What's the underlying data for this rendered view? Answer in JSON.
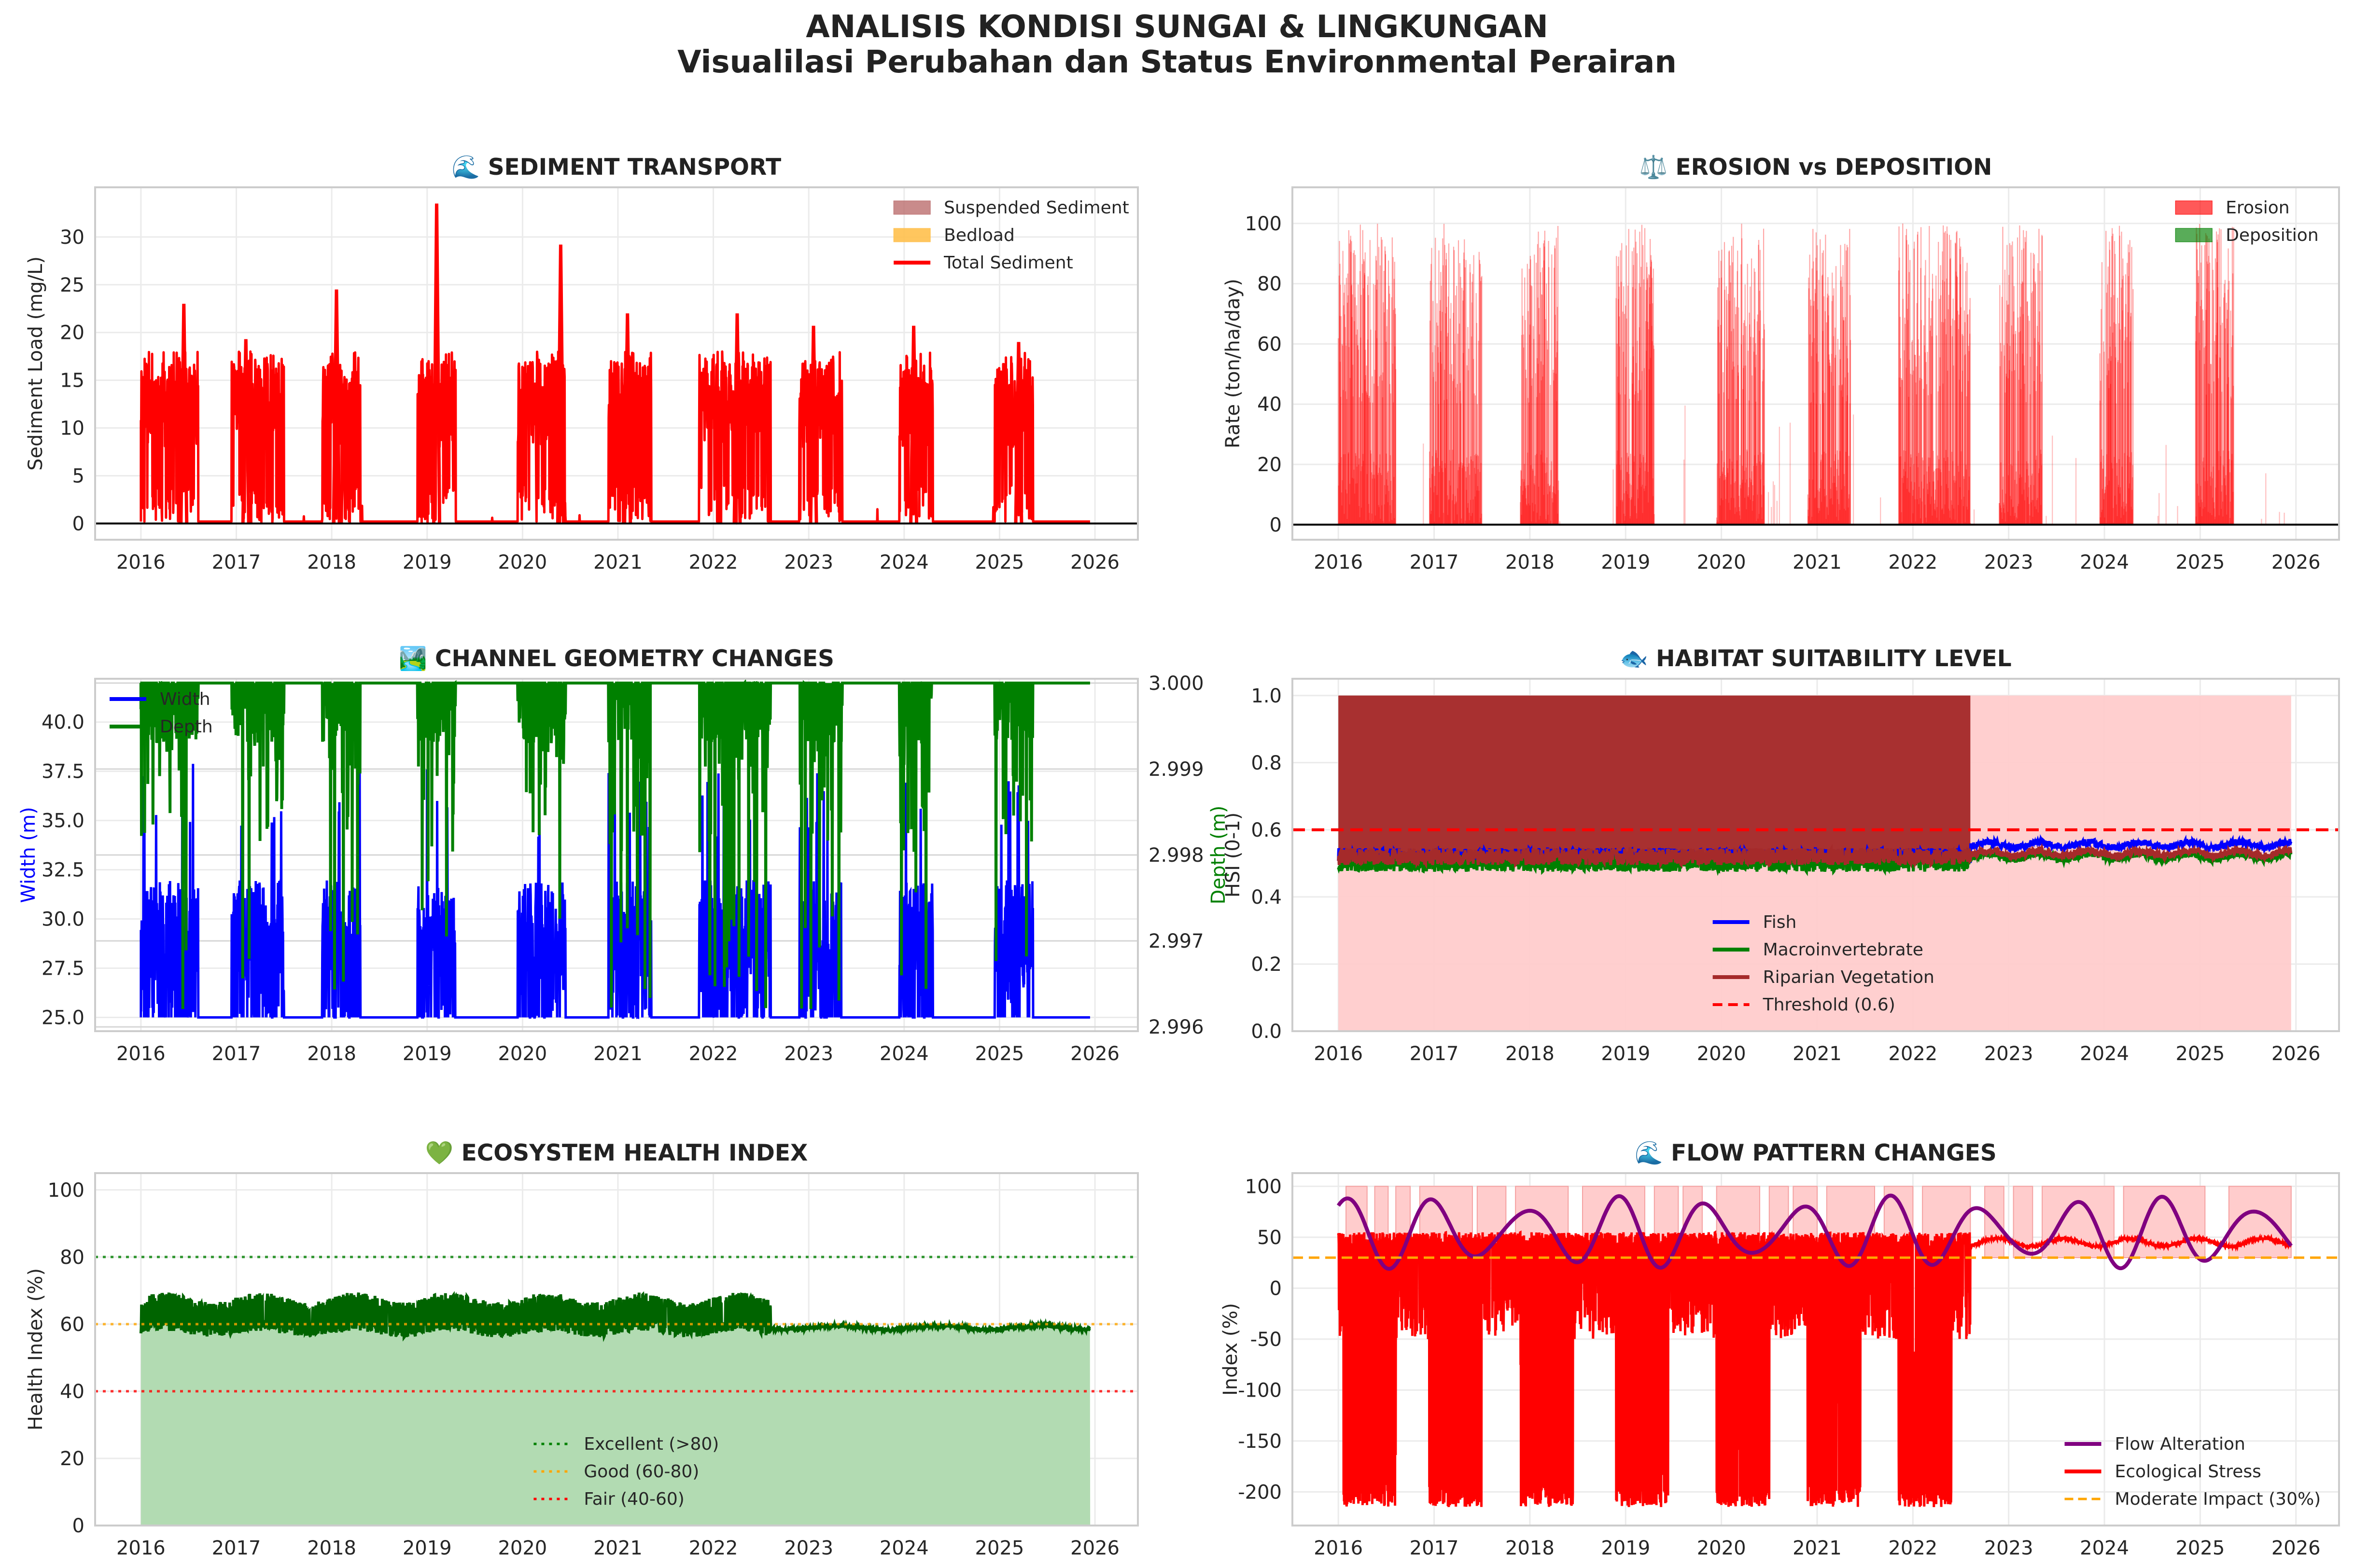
{
  "figure": {
    "title": "ANALISIS KONDISI SUNGAI & LINGKUNGAN",
    "subtitle": "Visualilasi Perubahan dan Status Environmental Perairan"
  },
  "colors": {
    "red": "#ff0000",
    "blue": "#0000ff",
    "green": "#008000",
    "darkgreen": "#006400",
    "brown": "#a52a2a",
    "purple": "#800080",
    "orange": "#ffa500",
    "suspended": "#bc6e6e",
    "bedload": "#ffc04d",
    "pink": "#ffcccc",
    "lightgreen": "#b2dbb2"
  },
  "chart_data": [
    {
      "id": "sediment",
      "type": "line",
      "title": "🌊 SEDIMENT TRANSPORT",
      "xlabel": "",
      "ylabel": "Sediment Load (mg/L)",
      "xlim": [
        2015.52,
        2026.45
      ],
      "ylim": [
        -1.7,
        35.2
      ],
      "xticks": [
        2016,
        2017,
        2018,
        2019,
        2020,
        2021,
        2022,
        2023,
        2024,
        2025,
        2026
      ],
      "yticks": [
        0,
        5,
        10,
        15,
        20,
        25,
        30
      ],
      "legend": [
        "Suspended Sediment",
        "Bedload",
        "Total Sediment"
      ],
      "legend_position": "upper right",
      "series": [
        {
          "name": "Total Sediment",
          "wet_seasons": [
            [
              2016.0,
              2016.6
            ],
            [
              2016.95,
              2017.5
            ],
            [
              2017.9,
              2018.3
            ],
            [
              2018.9,
              2019.3
            ],
            [
              2019.95,
              2020.45
            ],
            [
              2020.9,
              2021.35
            ],
            [
              2021.85,
              2022.6
            ],
            [
              2022.9,
              2023.35
            ],
            [
              2023.95,
              2024.3
            ],
            [
              2024.95,
              2025.35
            ]
          ],
          "peaks": [
            [
              2016.45,
              23
            ],
            [
              2017.1,
              19.3
            ],
            [
              2018.05,
              24.5
            ],
            [
              2019.1,
              33.5
            ],
            [
              2020.4,
              29.2
            ],
            [
              2021.1,
              22
            ],
            [
              2022.25,
              22
            ],
            [
              2023.05,
              20.7
            ],
            [
              2024.1,
              20.7
            ],
            [
              2025.2,
              19
            ]
          ],
          "baseline": 0.2
        }
      ]
    },
    {
      "id": "erosion",
      "type": "bar",
      "title": "⚖️ EROSION vs DEPOSITION",
      "xlabel": "",
      "ylabel": "Rate (ton/ha/day)",
      "xlim": [
        2015.52,
        2026.45
      ],
      "ylim": [
        -5,
        112
      ],
      "xticks": [
        2016,
        2017,
        2018,
        2019,
        2020,
        2021,
        2022,
        2023,
        2024,
        2025,
        2026
      ],
      "yticks": [
        0,
        20,
        40,
        60,
        80,
        100
      ],
      "legend": [
        "Erosion",
        "Deposition"
      ],
      "legend_position": "upper right",
      "series": [
        {
          "name": "Erosion",
          "wet_seasons": [
            [
              2016.0,
              2016.6
            ],
            [
              2016.95,
              2017.5
            ],
            [
              2017.9,
              2018.3
            ],
            [
              2018.9,
              2019.3
            ],
            [
              2019.95,
              2020.45
            ],
            [
              2020.9,
              2021.35
            ],
            [
              2021.85,
              2022.6
            ],
            [
              2022.9,
              2023.35
            ],
            [
              2023.95,
              2024.3
            ],
            [
              2024.95,
              2025.35
            ]
          ],
          "max": 100
        }
      ]
    },
    {
      "id": "channel",
      "type": "line",
      "title": "🏞️ CHANNEL GEOMETRY CHANGES",
      "xlabel": "",
      "ylabel": "Width (m)",
      "ylabel_right": "Depth (m)",
      "xlim": [
        2015.52,
        2026.45
      ],
      "ylim": [
        24.3,
        42.2
      ],
      "ylim_right": [
        2.99595,
        3.00005
      ],
      "xticks": [
        2016,
        2017,
        2018,
        2019,
        2020,
        2021,
        2022,
        2023,
        2024,
        2025,
        2026
      ],
      "yticks": [
        25.0,
        27.5,
        30.0,
        32.5,
        35.0,
        37.5,
        40.0
      ],
      "ytick_labels": [
        "25.0",
        "27.5",
        "30.0",
        "32.5",
        "35.0",
        "37.5",
        "40.0"
      ],
      "yticks_right": [
        2.996,
        2.997,
        2.998,
        2.999,
        3.0
      ],
      "ytick_labels_right": [
        "2.996",
        "2.997",
        "2.998",
        "2.999",
        "3.000"
      ],
      "legend": [
        "Width",
        "Depth"
      ],
      "legend_position": "upper left",
      "series": [
        {
          "name": "Width",
          "baseline": 25,
          "peak": 38
        },
        {
          "name": "Depth",
          "baseline": 3.0,
          "min": 2.9962
        }
      ]
    },
    {
      "id": "habitat",
      "type": "line",
      "title": "🐟 HABITAT SUITABILITY LEVEL",
      "xlabel": "",
      "ylabel": "HSI (0-1)",
      "xlim": [
        2015.52,
        2026.45
      ],
      "ylim": [
        0,
        1.05
      ],
      "xticks": [
        2016,
        2017,
        2018,
        2019,
        2020,
        2021,
        2022,
        2023,
        2024,
        2025,
        2026
      ],
      "yticks": [
        0.0,
        0.2,
        0.4,
        0.6,
        0.8,
        1.0
      ],
      "ytick_labels": [
        "0.0",
        "0.2",
        "0.4",
        "0.6",
        "0.8",
        "1.0"
      ],
      "legend": [
        "Fish",
        "Macroinvertebrate",
        "Riparian Vegetation",
        "Threshold (0.6)"
      ],
      "legend_position": "lower center",
      "threshold": 0.6,
      "series": [
        {
          "name": "Fish",
          "level_early": 0.52,
          "level_late": 0.555
        },
        {
          "name": "Macroinvertebrate",
          "level_early": 0.5,
          "level_late": 0.52
        },
        {
          "name": "Riparian Vegetation",
          "level_early": 0.52,
          "level_late": 0.53
        }
      ],
      "regime_change": 2022.6
    },
    {
      "id": "health",
      "type": "area",
      "title": "💚 ECOSYSTEM HEALTH INDEX",
      "xlabel": "",
      "ylabel": "Health Index (%)",
      "xlim": [
        2015.52,
        2026.45
      ],
      "ylim": [
        0,
        105
      ],
      "xticks": [
        2016,
        2017,
        2018,
        2019,
        2020,
        2021,
        2022,
        2023,
        2024,
        2025,
        2026
      ],
      "yticks": [
        0,
        20,
        40,
        60,
        80,
        100
      ],
      "legend": [
        "Excellent (>80)",
        "Good (60-80)",
        "Fair (40-60)"
      ],
      "legend_position": "lower center",
      "reference_lines": [
        80,
        60,
        40
      ],
      "series": [
        {
          "name": "Health Index",
          "band_low": 56,
          "band_high": 69,
          "late_level": 59
        }
      ],
      "regime_change": 2022.6
    },
    {
      "id": "flow",
      "type": "line",
      "title": "🌊 FLOW PATTERN CHANGES",
      "xlabel": "",
      "ylabel": "Index (%)",
      "xlim": [
        2015.52,
        2026.45
      ],
      "ylim": [
        -233,
        113
      ],
      "xticks": [
        2016,
        2017,
        2018,
        2019,
        2020,
        2021,
        2022,
        2023,
        2024,
        2025,
        2026
      ],
      "yticks": [
        -200,
        -150,
        -100,
        -50,
        0,
        50,
        100
      ],
      "legend": [
        "Flow Alteration",
        "Ecological Stress",
        "Moderate Impact (30%)"
      ],
      "legend_position": "lower right",
      "moderate_impact": 30,
      "series": [
        {
          "name": "Flow Alteration",
          "range": [
            15,
            95
          ]
        },
        {
          "name": "Ecological Stress",
          "band": [
            -215,
            55
          ],
          "late_level": 45
        }
      ],
      "regime_change": 2022.6
    }
  ]
}
